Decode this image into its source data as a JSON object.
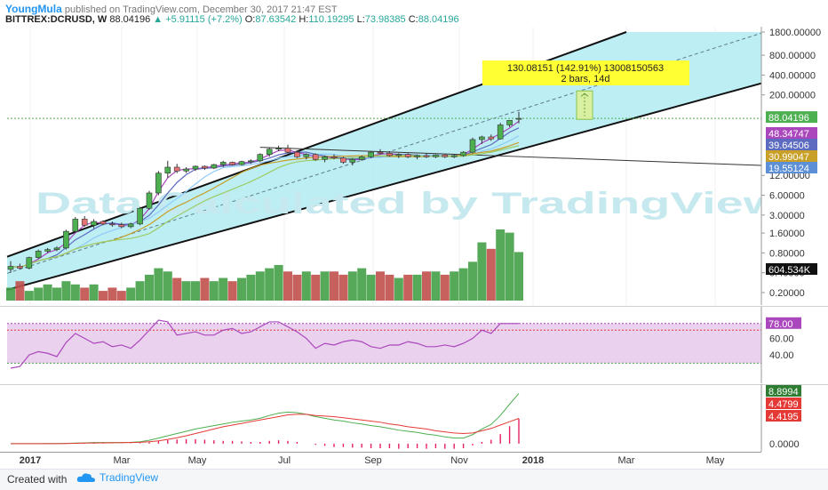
{
  "header": {
    "author": "YoungMula",
    "published": "published on TradingView.com, December 30, 2017 21:47 EST",
    "symbol": "BITTREX:DCRUSD, W",
    "last": "88.04196",
    "change": "+5.91115 (+7.2%)",
    "o_label": "O:",
    "o_val": "87.63542",
    "h_label": "H:",
    "h_val": "110.19295",
    "l_label": "L:",
    "l_val": "73.98385",
    "c_label": "C:",
    "c_val": "88.04196"
  },
  "watermark": "Data Calculated by TradingView",
  "colors": {
    "up": "#26a69a",
    "down": "#ef5350",
    "candle_up": "#4caf50",
    "candle_down": "#e57373",
    "channel_fill": "#b2ebf2",
    "rsi_line": "#ab47bc",
    "macd": "#4caf50",
    "signal": "#e53935"
  },
  "measure": {
    "line1": "130.08151 (142.91%) 13008150563",
    "line2": "2 bars, 14d"
  },
  "price_axis": {
    "ticks": [
      "1800.00000",
      "800.00000",
      "400.00000",
      "200.00000",
      "88.04196",
      "48.34747",
      "39.64506",
      "30.99047",
      "19.55124",
      "12.00000",
      "6.00000",
      "3.00000",
      "1.60000",
      "0.80000",
      "0.40000",
      "0.20000"
    ],
    "badges": [
      {
        "text": "88.04196",
        "color": "#4caf50"
      },
      {
        "text": "48.34747",
        "color": "#ab47bc"
      },
      {
        "text": "39.64506",
        "color": "#5c6bc0"
      },
      {
        "text": "30.99047",
        "color": "#c8a028"
      },
      {
        "text": "19.55124",
        "color": "#5c8fd6"
      }
    ],
    "volume_badge": "604.534K"
  },
  "rsi_axis": {
    "ticks": [
      "78.00",
      "60.00",
      "40.00"
    ]
  },
  "macd_axis": {
    "ticks": [
      "8.8994",
      "4.4799",
      "4.4195",
      "0.0000"
    ]
  },
  "x_axis": {
    "labels": [
      "2017",
      "Mar",
      "May",
      "Jul",
      "Sep",
      "Nov",
      "2018",
      "Mar",
      "May"
    ]
  },
  "footer": {
    "created": "Created with",
    "brand": "TradingView"
  },
  "chart_data": {
    "type": "candlestick",
    "scale": "log",
    "ylim": [
      0.2,
      1800
    ],
    "ohlc": [
      {
        "o": 0.45,
        "h": 0.6,
        "l": 0.4,
        "c": 0.5
      },
      {
        "o": 0.5,
        "h": 0.55,
        "l": 0.45,
        "c": 0.47
      },
      {
        "o": 0.47,
        "h": 0.7,
        "l": 0.45,
        "c": 0.68
      },
      {
        "o": 0.68,
        "h": 0.9,
        "l": 0.65,
        "c": 0.85
      },
      {
        "o": 0.85,
        "h": 0.95,
        "l": 0.8,
        "c": 0.9
      },
      {
        "o": 0.9,
        "h": 1.0,
        "l": 0.85,
        "c": 0.95
      },
      {
        "o": 0.95,
        "h": 1.8,
        "l": 0.9,
        "c": 1.7
      },
      {
        "o": 1.7,
        "h": 2.8,
        "l": 1.6,
        "c": 2.6
      },
      {
        "o": 2.6,
        "h": 2.9,
        "l": 2.0,
        "c": 2.1
      },
      {
        "o": 2.1,
        "h": 2.6,
        "l": 1.9,
        "c": 2.4
      },
      {
        "o": 2.4,
        "h": 2.5,
        "l": 2.1,
        "c": 2.2
      },
      {
        "o": 2.2,
        "h": 2.4,
        "l": 2.0,
        "c": 2.15
      },
      {
        "o": 2.15,
        "h": 2.3,
        "l": 1.9,
        "c": 2.0
      },
      {
        "o": 2.0,
        "h": 2.3,
        "l": 1.9,
        "c": 2.2
      },
      {
        "o": 2.2,
        "h": 4.0,
        "l": 2.1,
        "c": 3.8
      },
      {
        "o": 3.8,
        "h": 7.0,
        "l": 3.6,
        "c": 6.5
      },
      {
        "o": 6.5,
        "h": 14.0,
        "l": 6.0,
        "c": 13.0
      },
      {
        "o": 13.0,
        "h": 20.0,
        "l": 11.0,
        "c": 16.0
      },
      {
        "o": 16.0,
        "h": 18.0,
        "l": 13.0,
        "c": 14.0
      },
      {
        "o": 14.0,
        "h": 16.0,
        "l": 13.0,
        "c": 15.0
      },
      {
        "o": 15.0,
        "h": 17.0,
        "l": 14.0,
        "c": 16.5
      },
      {
        "o": 16.5,
        "h": 17.0,
        "l": 14.5,
        "c": 15.5
      },
      {
        "o": 15.5,
        "h": 18.0,
        "l": 15.0,
        "c": 17.5
      },
      {
        "o": 17.5,
        "h": 20.0,
        "l": 16.0,
        "c": 19.0
      },
      {
        "o": 19.0,
        "h": 19.5,
        "l": 17.0,
        "c": 17.5
      },
      {
        "o": 17.5,
        "h": 20.0,
        "l": 17.0,
        "c": 19.5
      },
      {
        "o": 19.5,
        "h": 21.0,
        "l": 18.0,
        "c": 20.0
      },
      {
        "o": 20.0,
        "h": 26.0,
        "l": 19.0,
        "c": 25.0
      },
      {
        "o": 25.0,
        "h": 32.0,
        "l": 23.0,
        "c": 30.0
      },
      {
        "o": 30.0,
        "h": 34.0,
        "l": 28.0,
        "c": 31.0
      },
      {
        "o": 31.0,
        "h": 35.0,
        "l": 26.0,
        "c": 27.0
      },
      {
        "o": 27.0,
        "h": 28.0,
        "l": 22.0,
        "c": 23.0
      },
      {
        "o": 23.0,
        "h": 26.0,
        "l": 21.0,
        "c": 25.0
      },
      {
        "o": 25.0,
        "h": 26.0,
        "l": 20.0,
        "c": 21.0
      },
      {
        "o": 21.0,
        "h": 24.0,
        "l": 19.0,
        "c": 23.0
      },
      {
        "o": 23.0,
        "h": 25.0,
        "l": 21.0,
        "c": 22.0
      },
      {
        "o": 22.0,
        "h": 23.0,
        "l": 18.0,
        "c": 19.0
      },
      {
        "o": 19.0,
        "h": 22.0,
        "l": 17.0,
        "c": 21.0
      },
      {
        "o": 21.0,
        "h": 24.0,
        "l": 20.0,
        "c": 23.0
      },
      {
        "o": 23.0,
        "h": 28.0,
        "l": 22.0,
        "c": 27.0
      },
      {
        "o": 27.0,
        "h": 30.0,
        "l": 25.0,
        "c": 26.0
      },
      {
        "o": 26.0,
        "h": 28.0,
        "l": 23.0,
        "c": 24.0
      },
      {
        "o": 24.0,
        "h": 26.0,
        "l": 22.0,
        "c": 25.0
      },
      {
        "o": 25.0,
        "h": 26.0,
        "l": 22.0,
        "c": 23.0
      },
      {
        "o": 23.0,
        "h": 25.0,
        "l": 21.0,
        "c": 24.0
      },
      {
        "o": 24.0,
        "h": 26.0,
        "l": 22.0,
        "c": 23.0
      },
      {
        "o": 23.0,
        "h": 25.0,
        "l": 22.0,
        "c": 24.5
      },
      {
        "o": 24.5,
        "h": 25.0,
        "l": 22.0,
        "c": 23.0
      },
      {
        "o": 23.0,
        "h": 25.0,
        "l": 22.0,
        "c": 24.0
      },
      {
        "o": 24.0,
        "h": 28.0,
        "l": 23.0,
        "c": 27.0
      },
      {
        "o": 27.0,
        "h": 45.0,
        "l": 26.0,
        "c": 42.0
      },
      {
        "o": 42.0,
        "h": 48.0,
        "l": 36.0,
        "c": 46.0
      },
      {
        "o": 46.0,
        "h": 50.0,
        "l": 40.0,
        "c": 43.0
      },
      {
        "o": 43.0,
        "h": 75.0,
        "l": 42.0,
        "c": 70.0
      },
      {
        "o": 70.0,
        "h": 82.0,
        "l": 65.0,
        "c": 82.1
      },
      {
        "o": 87.6,
        "h": 110.2,
        "l": 74.0,
        "c": 88.0
      }
    ],
    "volume": [
      4,
      6,
      3,
      4,
      5,
      4,
      6,
      5,
      4,
      5,
      3,
      4,
      3,
      4,
      6,
      8,
      10,
      9,
      7,
      6,
      6,
      7,
      6,
      7,
      6,
      7,
      8,
      9,
      10,
      11,
      9,
      8,
      9,
      8,
      9,
      9,
      8,
      9,
      10,
      8,
      9,
      8,
      7,
      8,
      8,
      9,
      9,
      8,
      9,
      10,
      12,
      18,
      16,
      22,
      21,
      15
    ],
    "rsi": [
      24,
      26,
      40,
      44,
      42,
      38,
      55,
      66,
      60,
      54,
      56,
      50,
      52,
      48,
      58,
      70,
      82,
      80,
      64,
      66,
      68,
      64,
      64,
      70,
      72,
      66,
      68,
      74,
      80,
      80,
      74,
      68,
      60,
      48,
      54,
      52,
      56,
      58,
      56,
      50,
      48,
      52,
      52,
      56,
      54,
      50,
      50,
      52,
      50,
      54,
      60,
      70,
      66,
      78,
      78,
      78
    ],
    "macd": [
      0,
      0,
      0,
      0,
      0.02,
      0.02,
      0.05,
      0.1,
      0.15,
      0.2,
      0.2,
      0.2,
      0.2,
      0.25,
      0.35,
      0.6,
      1.0,
      1.4,
      1.8,
      2.2,
      2.6,
      2.9,
      3.2,
      3.5,
      3.8,
      4.0,
      4.2,
      4.5,
      5.0,
      5.4,
      5.6,
      5.5,
      5.2,
      4.8,
      4.5,
      4.2,
      4.0,
      3.7,
      3.5,
      3.2,
      3.0,
      2.7,
      2.4,
      2.2,
      2.0,
      1.7,
      1.5,
      1.2,
      1.0,
      1.0,
      1.6,
      2.6,
      3.4,
      5.0,
      7.0,
      8.9
    ],
    "signal": [
      0,
      0,
      0,
      0,
      0,
      0.01,
      0.03,
      0.06,
      0.1,
      0.13,
      0.15,
      0.17,
      0.18,
      0.2,
      0.25,
      0.35,
      0.5,
      0.75,
      1.05,
      1.4,
      1.8,
      2.2,
      2.6,
      3.0,
      3.3,
      3.6,
      3.9,
      4.2,
      4.5,
      4.8,
      5.1,
      5.2,
      5.2,
      5.0,
      4.9,
      4.8,
      4.6,
      4.4,
      4.2,
      4.0,
      3.8,
      3.5,
      3.3,
      3.0,
      2.8,
      2.6,
      2.3,
      2.1,
      1.9,
      1.8,
      1.9,
      2.3,
      2.7,
      3.3,
      3.9,
      4.48
    ]
  }
}
